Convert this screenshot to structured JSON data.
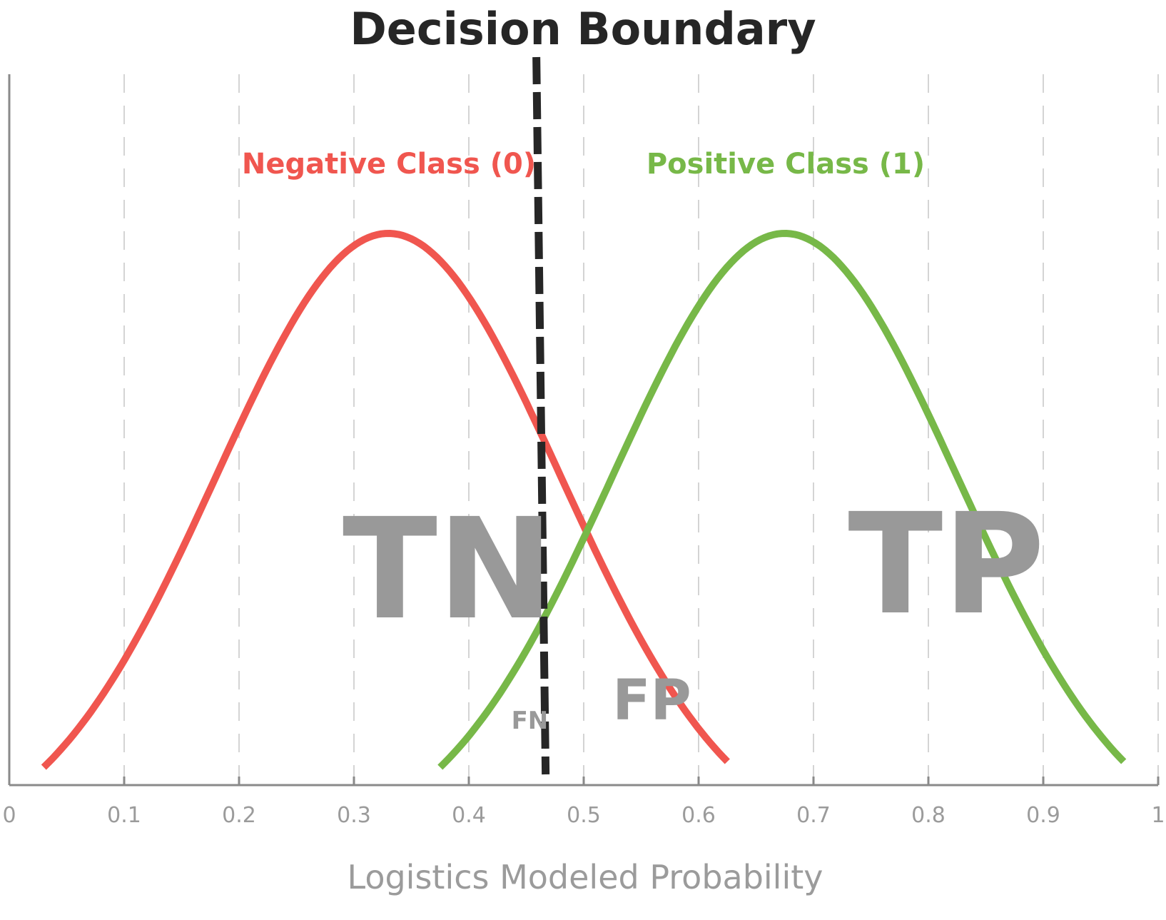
{
  "chart_data": {
    "type": "line",
    "title": "Decision Boundary",
    "xlabel": "Logistics Modeled Probability",
    "ylabel": "",
    "xlim": [
      0,
      1
    ],
    "x_ticks": [
      0,
      0.1,
      0.2,
      0.3,
      0.4,
      0.5,
      0.6,
      0.7,
      0.8,
      0.9,
      1
    ],
    "x_tick_labels": [
      "0",
      "0.1",
      "0.2",
      "0.3",
      "0.4",
      "0.5",
      "0.6",
      "0.7",
      "0.8",
      "0.9",
      "1"
    ],
    "y_axis_ticks": false,
    "grid": {
      "vertical": true,
      "style": "dashed"
    },
    "decision_boundary": {
      "x": 0.465,
      "style": "dashed",
      "color": "#262626"
    },
    "series": [
      {
        "name": "Negative Class (0)",
        "color": "#f0564f",
        "distribution": "bell",
        "mean": 0.33,
        "x_range": [
          0.03,
          0.625
        ],
        "peak_relative_height": 1.0
      },
      {
        "name": "Positive Class (1)",
        "color": "#77b848",
        "distribution": "bell",
        "mean": 0.675,
        "x_range": [
          0.375,
          0.97
        ],
        "peak_relative_height": 1.0
      }
    ],
    "region_labels": [
      {
        "text": "TN",
        "x": 0.29,
        "size": "large"
      },
      {
        "text": "TP",
        "x": 0.73,
        "size": "large"
      },
      {
        "text": "FP",
        "x": 0.525,
        "size": "medium"
      },
      {
        "text": "FN",
        "x": 0.437,
        "size": "small"
      }
    ]
  }
}
